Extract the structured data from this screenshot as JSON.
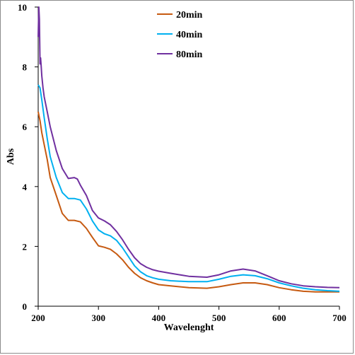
{
  "chart_data": {
    "type": "line",
    "xlabel": "Wavelenght",
    "ylabel": "Abs",
    "xlim": [
      200,
      700
    ],
    "ylim": [
      0,
      10
    ],
    "x_ticks": [
      "200",
      "300",
      "400",
      "500",
      "600",
      "700"
    ],
    "y_ticks": [
      "0",
      "2",
      "4",
      "6",
      "8",
      "10"
    ],
    "grid": false,
    "legend_position": "top-center",
    "series": [
      {
        "name": "20min",
        "color": "#c65a11",
        "x": [
          200,
          203,
          206,
          210,
          215,
          220,
          230,
          240,
          250,
          260,
          270,
          280,
          290,
          300,
          310,
          320,
          330,
          340,
          350,
          360,
          370,
          380,
          390,
          400,
          420,
          450,
          480,
          500,
          520,
          540,
          560,
          580,
          600,
          620,
          640,
          660,
          680,
          700
        ],
        "values": [
          6.5,
          6.2,
          5.8,
          5.4,
          4.9,
          4.3,
          3.7,
          3.1,
          2.87,
          2.87,
          2.82,
          2.6,
          2.3,
          2.02,
          1.97,
          1.9,
          1.75,
          1.55,
          1.3,
          1.1,
          0.95,
          0.85,
          0.78,
          0.72,
          0.68,
          0.62,
          0.6,
          0.65,
          0.72,
          0.78,
          0.78,
          0.72,
          0.62,
          0.55,
          0.5,
          0.48,
          0.48,
          0.48
        ]
      },
      {
        "name": "40min",
        "color": "#00b0f0",
        "x": [
          200,
          203,
          206,
          210,
          215,
          220,
          230,
          240,
          250,
          260,
          270,
          280,
          290,
          300,
          310,
          320,
          330,
          340,
          350,
          360,
          370,
          380,
          390,
          400,
          420,
          450,
          480,
          500,
          520,
          540,
          560,
          580,
          600,
          620,
          640,
          660,
          680,
          700
        ],
        "values": [
          7.4,
          7.3,
          6.9,
          6.3,
          5.6,
          5.0,
          4.3,
          3.8,
          3.6,
          3.6,
          3.55,
          3.25,
          2.85,
          2.55,
          2.42,
          2.35,
          2.2,
          1.95,
          1.65,
          1.35,
          1.15,
          1.02,
          0.95,
          0.9,
          0.85,
          0.82,
          0.82,
          0.9,
          1.0,
          1.05,
          1.02,
          0.92,
          0.78,
          0.68,
          0.6,
          0.55,
          0.52,
          0.5
        ]
      },
      {
        "name": "80min",
        "color": "#7030a0",
        "x": [
          200,
          201,
          202,
          203,
          204,
          205,
          206,
          208,
          210,
          215,
          220,
          230,
          240,
          250,
          260,
          265,
          270,
          280,
          290,
          300,
          310,
          320,
          330,
          340,
          350,
          360,
          370,
          380,
          390,
          400,
          420,
          450,
          480,
          500,
          520,
          540,
          560,
          580,
          600,
          620,
          640,
          660,
          680,
          700
        ],
        "values": [
          9.0,
          10.0,
          9.6,
          8.1,
          8.3,
          8.0,
          7.7,
          7.3,
          7.0,
          6.5,
          6.0,
          5.2,
          4.6,
          4.27,
          4.3,
          4.25,
          4.05,
          3.7,
          3.2,
          2.95,
          2.85,
          2.72,
          2.5,
          2.22,
          1.9,
          1.62,
          1.42,
          1.3,
          1.22,
          1.17,
          1.1,
          1.0,
          0.97,
          1.05,
          1.18,
          1.24,
          1.18,
          1.02,
          0.85,
          0.75,
          0.68,
          0.65,
          0.63,
          0.62
        ]
      }
    ]
  }
}
